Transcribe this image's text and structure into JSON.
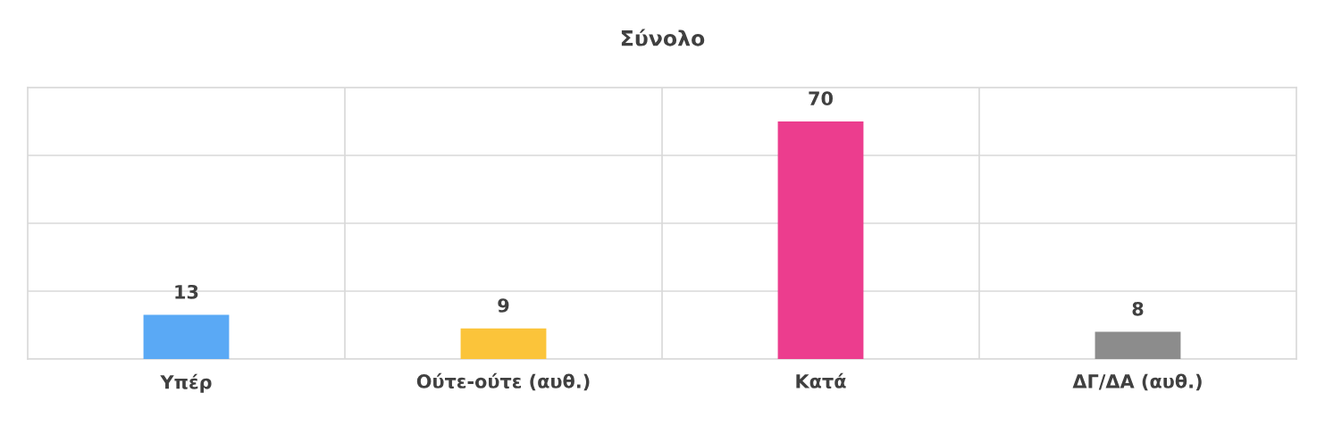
{
  "chart_data": {
    "type": "bar",
    "title": "Σύνολο",
    "categories": [
      "Υπέρ",
      "Ούτε-ούτε (αυθ.)",
      "Κατά",
      "ΔΓ/ΔΑ (αυθ.)"
    ],
    "values": [
      13,
      9,
      70,
      8
    ],
    "colors": [
      "#5aa9f5",
      "#fbc43a",
      "#ec3d8e",
      "#8c8c8c"
    ],
    "ylim": [
      0,
      80
    ],
    "yticks": [
      {
        "value": 0,
        "label": null
      },
      {
        "value": 20,
        "label": null
      },
      {
        "value": 40,
        "label": null
      },
      {
        "value": 60,
        "label": null
      },
      {
        "value": 80,
        "label": null
      }
    ],
    "tick_labels": "x",
    "grid": true,
    "data_labels": true
  }
}
